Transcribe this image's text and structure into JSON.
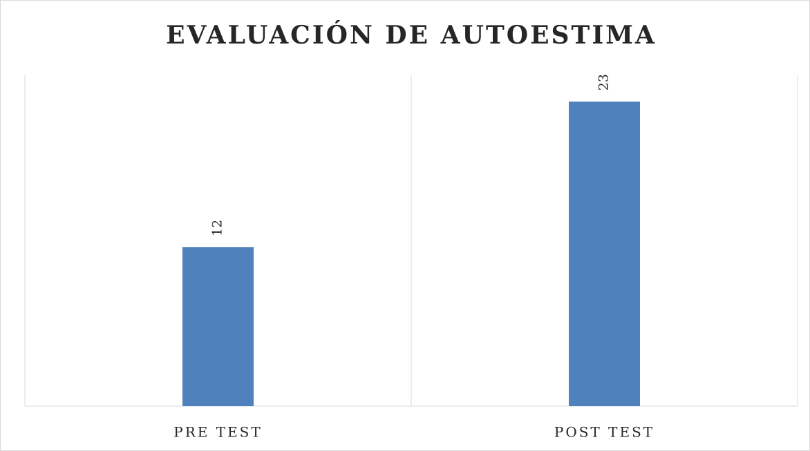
{
  "chart_data": {
    "type": "bar",
    "title": "EVALUACIÓN DE AUTOESTIMA",
    "categories": [
      "PRE TEST",
      "POST TEST"
    ],
    "values": [
      12,
      23
    ],
    "color": "#4f81bd",
    "ylim": [
      0,
      25
    ]
  }
}
